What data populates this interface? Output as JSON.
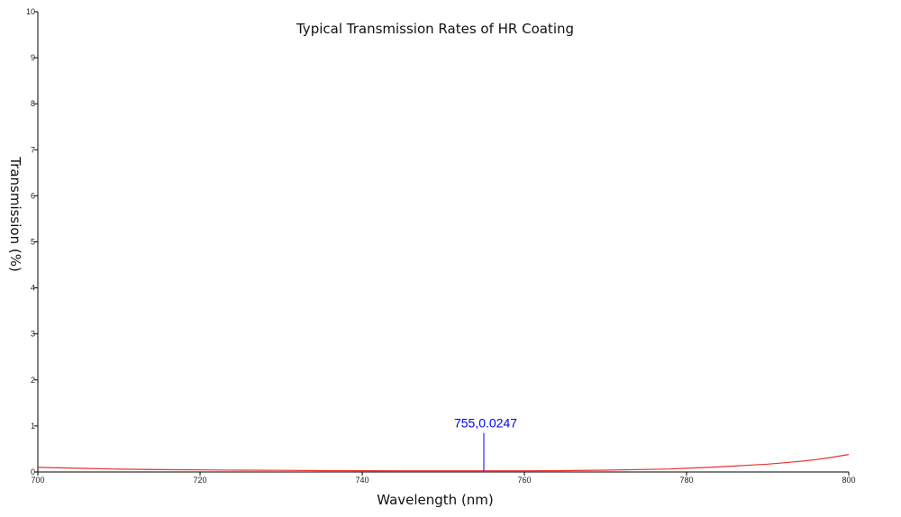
{
  "chart_data": {
    "type": "line",
    "title": "Typical Transmission Rates of HR Coating",
    "xlabel": "Wavelength (nm)",
    "ylabel": "Transmission (%)",
    "xlim": [
      700,
      800
    ],
    "ylim": [
      0,
      10
    ],
    "x_ticks": [
      "700",
      "720",
      "740",
      "760",
      "780",
      "800"
    ],
    "y_ticks": [
      "0",
      "1",
      "2",
      "3",
      "4",
      "5",
      "6",
      "7",
      "8",
      "9",
      "10"
    ],
    "grid": false,
    "legend": "none",
    "series": [
      {
        "color": "#e8312f",
        "x": [
          700,
          705,
          710,
          715,
          720,
          725,
          730,
          735,
          740,
          745,
          750,
          755,
          760,
          765,
          770,
          775,
          778,
          780,
          782,
          784,
          786,
          788,
          790,
          792,
          794,
          796,
          798,
          800
        ],
        "y": [
          0.1,
          0.08,
          0.06,
          0.05,
          0.045,
          0.04,
          0.035,
          0.03,
          0.028,
          0.026,
          0.025,
          0.0247,
          0.025,
          0.03,
          0.04,
          0.055,
          0.065,
          0.08,
          0.095,
          0.11,
          0.13,
          0.15,
          0.17,
          0.2,
          0.23,
          0.27,
          0.32,
          0.38
        ]
      }
    ],
    "annotations": [
      {
        "x": 755,
        "y": 0.0247,
        "text": "755,0.0247",
        "color": "#0000ff"
      }
    ]
  }
}
